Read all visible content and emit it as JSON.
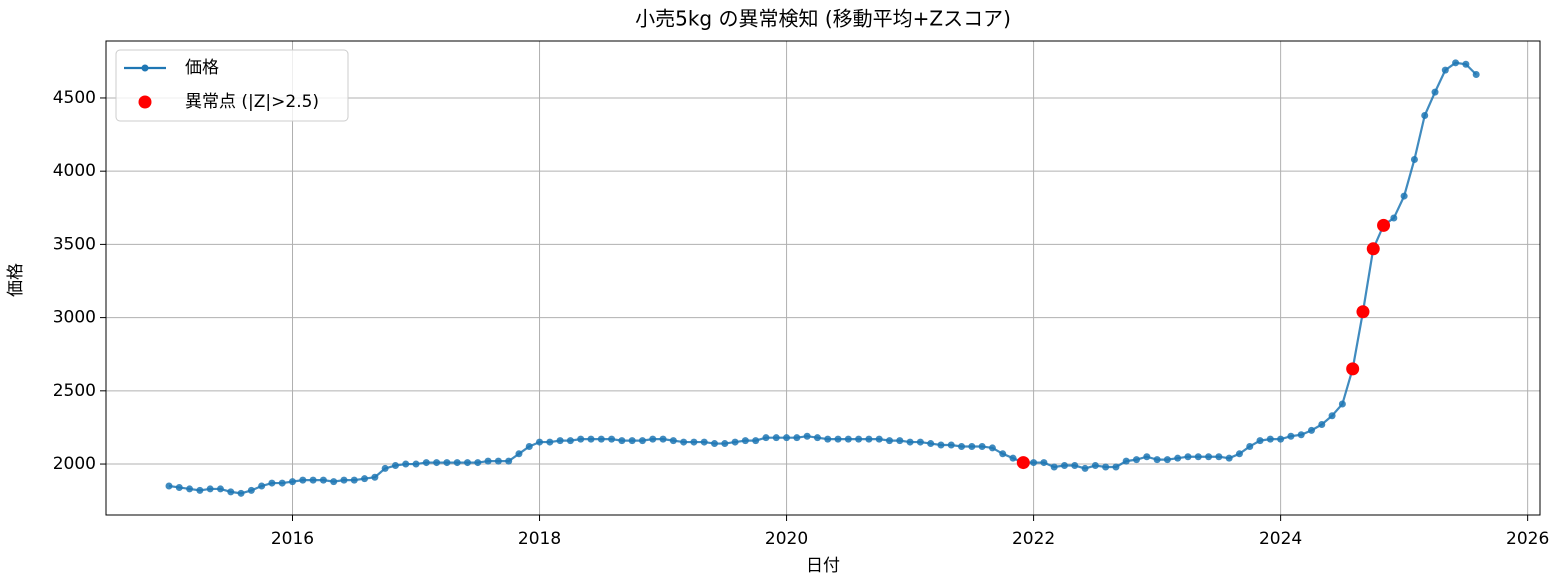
{
  "chart_data": {
    "type": "line",
    "title": "小売5kg の異常検知 (移動平均+Zスコア)",
    "x_label": "日付",
    "y_label": "価格",
    "legend": "upper left",
    "grid": true,
    "xlim": [
      2014.49,
      2026.1
    ],
    "xticks": [
      2016,
      2018,
      2020,
      2022,
      2024,
      2026
    ],
    "ylim": [
      1652,
      4889
    ],
    "yticks": [
      2000,
      2500,
      3000,
      3500,
      4000,
      4500
    ],
    "x": [
      "2015-01",
      "2015-02",
      "2015-03",
      "2015-04",
      "2015-05",
      "2015-06",
      "2015-07",
      "2015-08",
      "2015-09",
      "2015-10",
      "2015-11",
      "2015-12",
      "2016-01",
      "2016-02",
      "2016-03",
      "2016-04",
      "2016-05",
      "2016-06",
      "2016-07",
      "2016-08",
      "2016-09",
      "2016-10",
      "2016-11",
      "2016-12",
      "2017-01",
      "2017-02",
      "2017-03",
      "2017-04",
      "2017-05",
      "2017-06",
      "2017-07",
      "2017-08",
      "2017-09",
      "2017-10",
      "2017-11",
      "2017-12",
      "2018-01",
      "2018-02",
      "2018-03",
      "2018-04",
      "2018-05",
      "2018-06",
      "2018-07",
      "2018-08",
      "2018-09",
      "2018-10",
      "2018-11",
      "2018-12",
      "2019-01",
      "2019-02",
      "2019-03",
      "2019-04",
      "2019-05",
      "2019-06",
      "2019-07",
      "2019-08",
      "2019-09",
      "2019-10",
      "2019-11",
      "2019-12",
      "2020-01",
      "2020-02",
      "2020-03",
      "2020-04",
      "2020-05",
      "2020-06",
      "2020-07",
      "2020-08",
      "2020-09",
      "2020-10",
      "2020-11",
      "2020-12",
      "2021-01",
      "2021-02",
      "2021-03",
      "2021-04",
      "2021-05",
      "2021-06",
      "2021-07",
      "2021-08",
      "2021-09",
      "2021-10",
      "2021-11",
      "2021-12",
      "2022-01",
      "2022-02",
      "2022-03",
      "2022-04",
      "2022-05",
      "2022-06",
      "2022-07",
      "2022-08",
      "2022-09",
      "2022-10",
      "2022-11",
      "2022-12",
      "2023-01",
      "2023-02",
      "2023-03",
      "2023-04",
      "2023-05",
      "2023-06",
      "2023-07",
      "2023-08",
      "2023-09",
      "2023-10",
      "2023-11",
      "2023-12",
      "2024-01",
      "2024-02",
      "2024-03",
      "2024-04",
      "2024-05",
      "2024-06",
      "2024-07",
      "2024-08",
      "2024-09",
      "2024-10",
      "2024-11",
      "2024-12",
      "2025-01",
      "2025-02",
      "2025-03",
      "2025-04",
      "2025-05",
      "2025-06",
      "2025-07",
      "2025-08"
    ],
    "series": [
      {
        "name": "価格",
        "color": "#1f77b4",
        "values": [
          1850,
          1840,
          1830,
          1820,
          1830,
          1830,
          1810,
          1800,
          1820,
          1850,
          1870,
          1870,
          1880,
          1890,
          1890,
          1890,
          1880,
          1890,
          1890,
          1900,
          1910,
          1970,
          1990,
          2000,
          2000,
          2010,
          2010,
          2010,
          2010,
          2010,
          2010,
          2020,
          2020,
          2020,
          2070,
          2120,
          2150,
          2150,
          2160,
          2160,
          2170,
          2170,
          2170,
          2170,
          2160,
          2160,
          2160,
          2170,
          2170,
          2160,
          2150,
          2150,
          2150,
          2140,
          2140,
          2150,
          2160,
          2160,
          2180,
          2180,
          2180,
          2180,
          2190,
          2180,
          2170,
          2170,
          2170,
          2170,
          2170,
          2170,
          2160,
          2160,
          2150,
          2150,
          2140,
          2130,
          2130,
          2120,
          2120,
          2120,
          2110,
          2070,
          2040,
          2010,
          2010,
          2010,
          1980,
          1990,
          1990,
          1970,
          1990,
          1980,
          1980,
          2020,
          2030,
          2050,
          2030,
          2030,
          2040,
          2050,
          2050,
          2050,
          2050,
          2040,
          2070,
          2120,
          2160,
          2170,
          2170,
          2190,
          2200,
          2230,
          2270,
          2330,
          2410,
          2650,
          3040,
          3470,
          3630,
          3680,
          3830,
          4080,
          4380,
          4540,
          4690,
          4740,
          4730,
          4660
        ]
      },
      {
        "name": "異常点 (|Z|>2.5)",
        "color": "#ff0000",
        "marker_only": true,
        "x": [
          "2021-12",
          "2024-08",
          "2024-09",
          "2024-10",
          "2024-11"
        ],
        "values": [
          2010,
          2650,
          3040,
          3470,
          3630
        ]
      }
    ]
  }
}
